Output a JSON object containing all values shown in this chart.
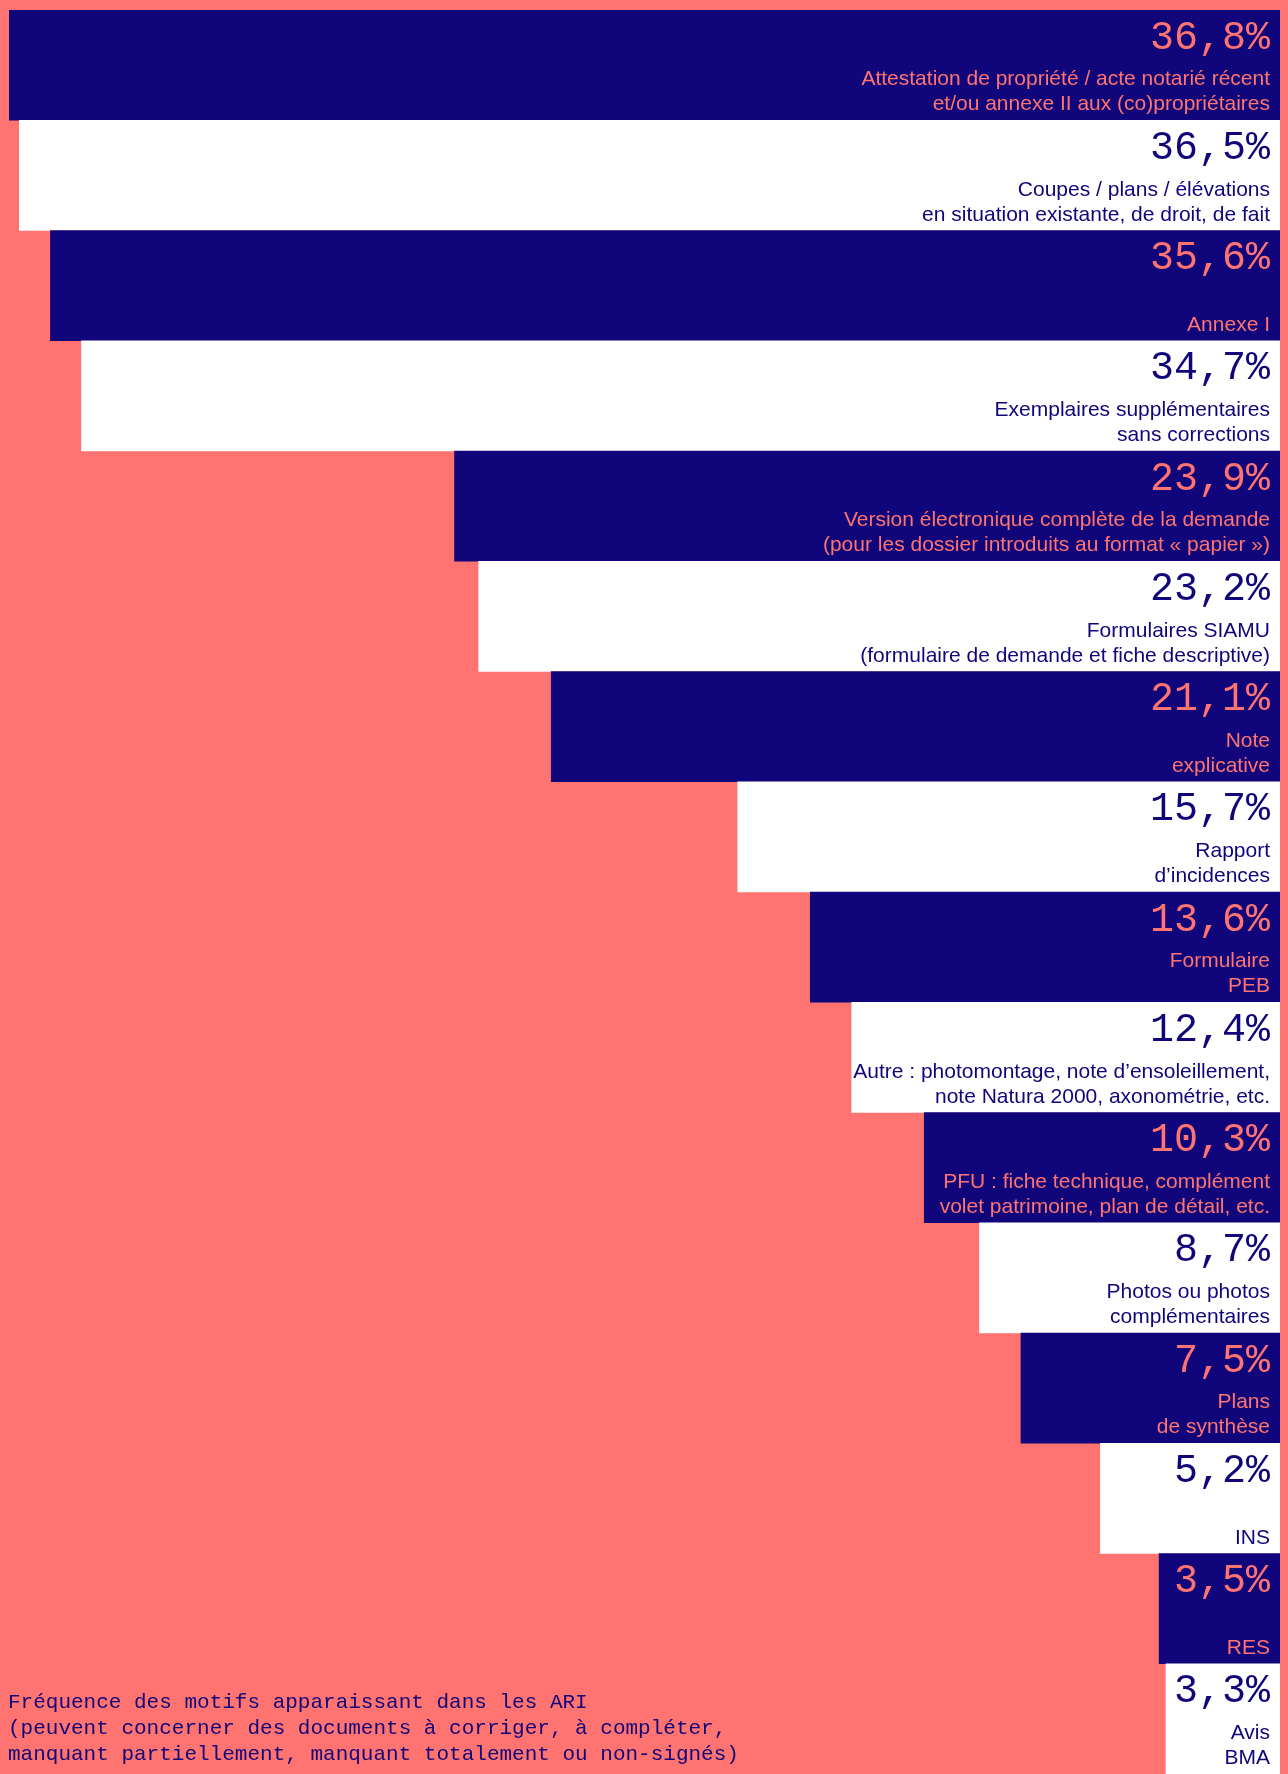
{
  "chart_data": {
    "type": "bar",
    "orientation": "horizontal",
    "categories": [
      "Attestation de propriété / acte notarié récent\net/ou annexe II aux (co)propriétaires",
      "Coupes / plans / élévations\nen situation existante, de droit, de fait",
      "Annexe I",
      "Exemplaires supplémentaires\nsans corrections",
      "Version électronique complète de la demande\n(pour les dossier introduits au format « papier »)",
      "Formulaires SIAMU\n(formulaire de demande et fiche descriptive)",
      "Note\nexplicative",
      "Rapport\nd’incidences",
      "Formulaire\nPEB",
      "Autre : photomontage, note d’ensoleillement,\nnote Natura 2000, axonométrie, etc.",
      "PFU : fiche technique, complément\nvolet patrimoine, plan de détail, etc.",
      "Photos ou photos\ncomplémentaires",
      "Plans\nde synthèse",
      "INS",
      "RES",
      "Avis\nBMA"
    ],
    "values": [
      36.8,
      36.5,
      35.6,
      34.7,
      23.9,
      23.2,
      21.1,
      15.7,
      13.6,
      12.4,
      10.3,
      8.7,
      7.5,
      5.2,
      3.5,
      3.3
    ],
    "value_labels": [
      "36,8%",
      "36,5%",
      "35,6%",
      "34,7%",
      "23,9%",
      "23,2%",
      "21,1%",
      "15,7%",
      "13,6%",
      "12,4%",
      "10,3%",
      "8,7%",
      "7,5%",
      "5,2%",
      "3,5%",
      "3,3%"
    ],
    "colors": [
      "#10057a",
      "#ffffff",
      "#10057a",
      "#ffffff",
      "#10057a",
      "#ffffff",
      "#10057a",
      "#ffffff",
      "#10057a",
      "#ffffff",
      "#10057a",
      "#ffffff",
      "#10057a",
      "#ffffff",
      "#10057a",
      "#ffffff"
    ],
    "annotations": [
      "Fréquence des motifs apparaissant dans les ARI\n(peuvent concerner des documents à corriger, à compléter,\nmanquant partiellement, manquant totalement ou non-signés)"
    ]
  }
}
